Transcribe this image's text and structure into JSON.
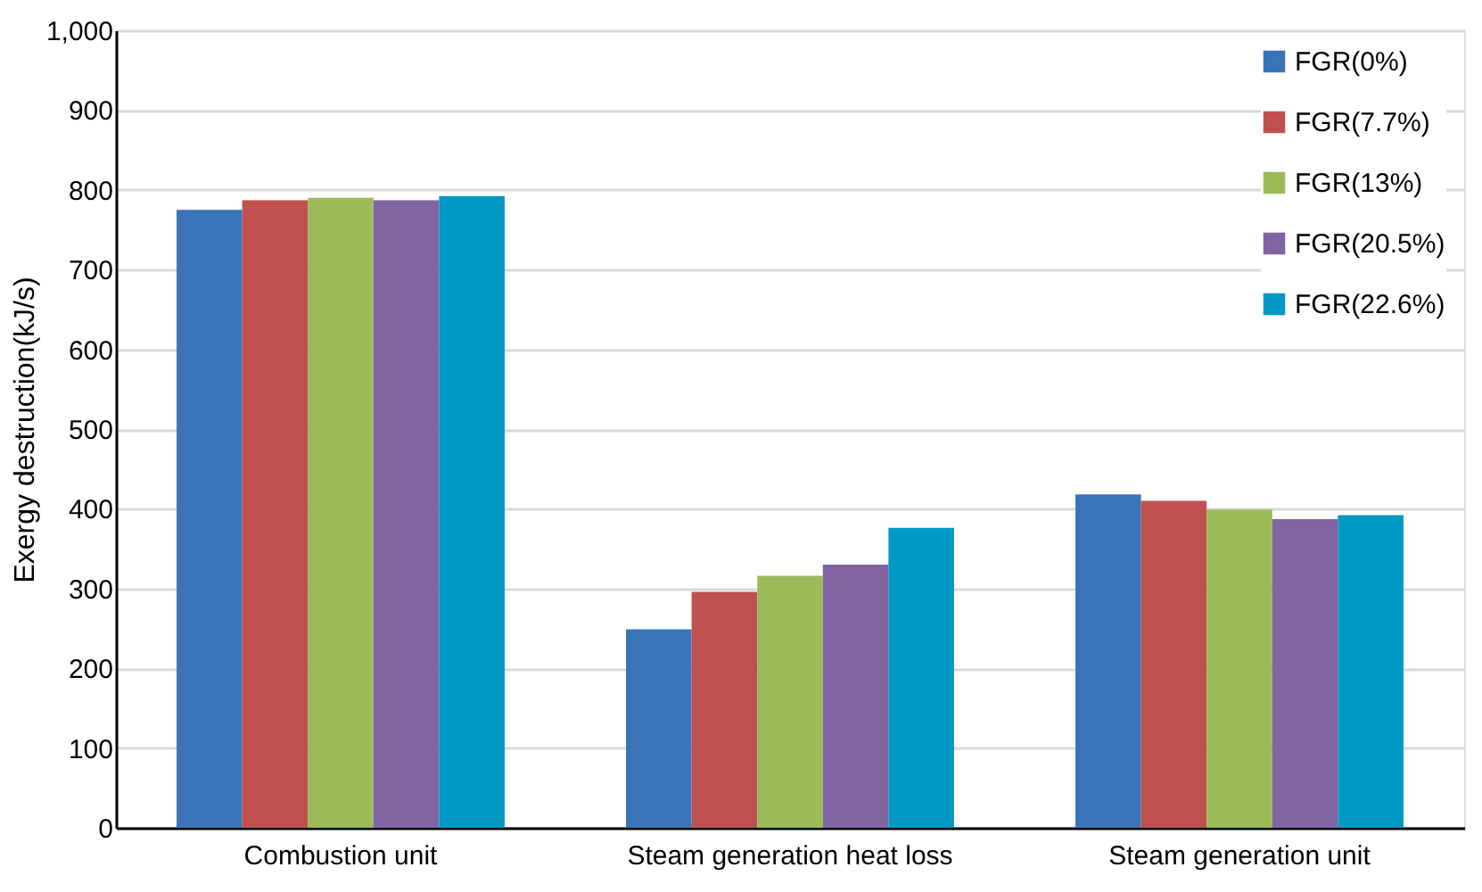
{
  "chart_data": {
    "type": "bar",
    "ylabel": "Exergy destruction(kJ/s)",
    "categories": [
      "Combustion unit",
      "Steam generation heat loss",
      "Steam generation unit"
    ],
    "series": [
      {
        "name": "FGR(0%)",
        "color": "#3a73b8",
        "values": [
          775,
          249,
          418
        ]
      },
      {
        "name": "FGR(7.7%)",
        "color": "#c0504d",
        "values": [
          787,
          296,
          410
        ]
      },
      {
        "name": "FGR(13%)",
        "color": "#9bbb59",
        "values": [
          790,
          316,
          399
        ]
      },
      {
        "name": "FGR(20.5%)",
        "color": "#8064a2",
        "values": [
          787,
          330,
          387
        ]
      },
      {
        "name": "FGR(22.6%)",
        "color": "#0099c6",
        "values": [
          792,
          376,
          392
        ]
      }
    ],
    "ylim": [
      0,
      1000
    ],
    "yticks": [
      0,
      100,
      200,
      300,
      400,
      500,
      600,
      700,
      800,
      900,
      {
        "value": 1000,
        "label": "1,000"
      }
    ],
    "grid": "y",
    "legend": "top right"
  }
}
